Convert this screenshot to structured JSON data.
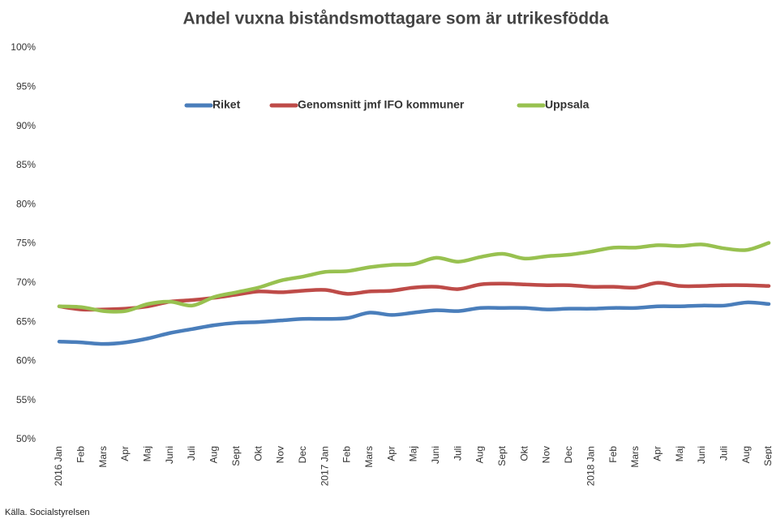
{
  "chart_data": {
    "type": "line",
    "title": "Andel vuxna biståndsmottagare som är utrikesfödda",
    "source": "Källa. Socialstyrelsen",
    "categories": [
      "2016 Jan",
      "Feb",
      "Mars",
      "Apr",
      "Maj",
      "Juni",
      "Juli",
      "Aug",
      "Sept",
      "Okt",
      "Nov",
      "Dec",
      "2017 Jan",
      "Feb",
      "Mars",
      "Apr",
      "Maj",
      "Juni",
      "Juli",
      "Aug",
      "Sept",
      "Okt",
      "Nov",
      "Dec",
      "2018 Jan",
      "Feb",
      "Mars",
      "Apr",
      "Maj",
      "Juni",
      "Juli",
      "Aug",
      "Sept"
    ],
    "series": [
      {
        "name": "Riket",
        "color": "#4a7ebb",
        "values": [
          62.5,
          62.4,
          62.2,
          62.4,
          62.9,
          63.6,
          64.1,
          64.6,
          64.9,
          65.0,
          65.2,
          65.4,
          65.4,
          65.5,
          66.2,
          65.9,
          66.2,
          66.5,
          66.4,
          66.8,
          66.8,
          66.8,
          66.6,
          66.7,
          66.7,
          66.8,
          66.8,
          67.0,
          67.0,
          67.1,
          67.1,
          67.5,
          67.3
        ]
      },
      {
        "name": "Genomsnitt jmf IFO kommuner",
        "color": "#be4b48",
        "values": [
          67.0,
          66.6,
          66.6,
          66.7,
          67.0,
          67.6,
          67.8,
          68.1,
          68.5,
          68.9,
          68.8,
          69.0,
          69.1,
          68.6,
          68.9,
          69.0,
          69.4,
          69.5,
          69.2,
          69.8,
          69.9,
          69.8,
          69.7,
          69.7,
          69.5,
          69.5,
          69.4,
          70.0,
          69.6,
          69.6,
          69.7,
          69.7,
          69.6
        ]
      },
      {
        "name": "Uppsala",
        "color": "#98c150",
        "values": [
          67.0,
          66.9,
          66.4,
          66.4,
          67.3,
          67.6,
          67.1,
          68.2,
          68.8,
          69.4,
          70.3,
          70.8,
          71.4,
          71.5,
          72.0,
          72.3,
          72.4,
          73.2,
          72.7,
          73.3,
          73.7,
          73.1,
          73.4,
          73.6,
          74.0,
          74.5,
          74.5,
          74.8,
          74.7,
          74.9,
          74.4,
          74.2,
          75.1
        ]
      }
    ],
    "ylim": [
      50,
      100
    ],
    "yticks": [
      {
        "value": 50,
        "label": "50%"
      },
      {
        "value": 55,
        "label": "55%"
      },
      {
        "value": 60,
        "label": "60%"
      },
      {
        "value": 65,
        "label": "65%"
      },
      {
        "value": 70,
        "label": "70%"
      },
      {
        "value": 75,
        "label": "75%"
      },
      {
        "value": 80,
        "label": "80%"
      },
      {
        "value": 85,
        "label": "85%"
      },
      {
        "value": 90,
        "label": "90%"
      },
      {
        "value": 95,
        "label": "95%"
      },
      {
        "value": 100,
        "label": "100%"
      }
    ],
    "grid": false,
    "legend": "top"
  }
}
